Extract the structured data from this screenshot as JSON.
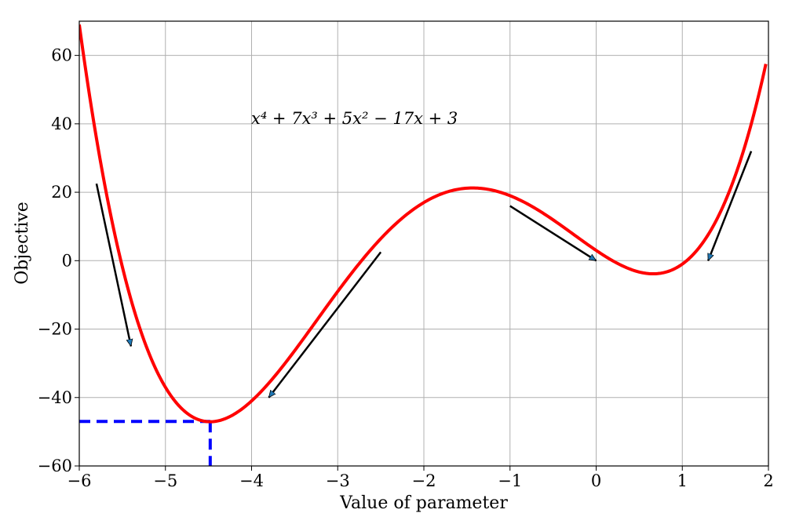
{
  "chart_data": {
    "type": "line",
    "title": "",
    "xlabel": "Value of parameter",
    "ylabel": "Objective",
    "xlim": [
      -6,
      2
    ],
    "ylim": [
      -60,
      70
    ],
    "xticks": [
      -6,
      -5,
      -4,
      -3,
      -2,
      -1,
      0,
      1,
      2
    ],
    "yticks": [
      -60,
      -40,
      -20,
      0,
      20,
      40,
      60
    ],
    "xtick_labels": [
      "−6",
      "−5",
      "−4",
      "−3",
      "−2",
      "−1",
      "0",
      "1",
      "2"
    ],
    "ytick_labels": [
      "−60",
      "−40",
      "−20",
      "0",
      "20",
      "40",
      "60"
    ],
    "grid": true,
    "annotation": "x⁴ + 7x³ + 5x² − 17x + 3",
    "series": [
      {
        "function_coefficients": [
          1,
          7,
          5,
          -17,
          3
        ],
        "x_range": [
          -6,
          1.97
        ],
        "color": "#ff0000"
      }
    ],
    "minimum": {
      "x": -4.48,
      "y": -47,
      "color": "#0000ff"
    },
    "arrows": [
      {
        "from": [
          -5.8,
          22.5
        ],
        "to": [
          -5.4,
          -25
        ]
      },
      {
        "from": [
          -2.5,
          2.5
        ],
        "to": [
          -3.8,
          -40
        ]
      },
      {
        "from": [
          -1.0,
          16
        ],
        "to": [
          0.0,
          0
        ]
      },
      {
        "from": [
          1.8,
          32
        ],
        "to": [
          1.3,
          0
        ]
      }
    ],
    "arrow_color": "#000000",
    "arrow_head_color": "#1f77b4"
  }
}
